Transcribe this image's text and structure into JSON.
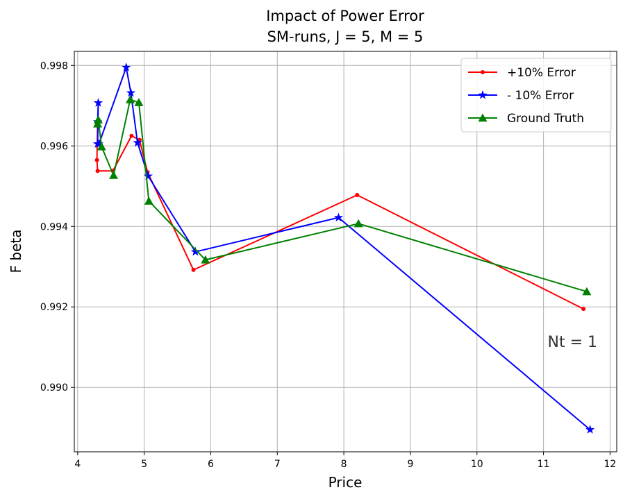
{
  "chart_data": {
    "type": "line",
    "title": "Impact of Power Error",
    "subtitle": "SM-runs, J = 5, M = 5",
    "xlabel": "Price",
    "ylabel": "F beta",
    "xlim": [
      3.95,
      12.1
    ],
    "ylim": [
      0.9884,
      0.99835
    ],
    "xticks": [
      4,
      5,
      6,
      7,
      8,
      9,
      10,
      11,
      12
    ],
    "yticks": [
      0.99,
      0.992,
      0.994,
      0.996,
      0.998
    ],
    "ytick_labels": [
      "0.990",
      "0.992",
      "0.994",
      "0.996",
      "0.998"
    ],
    "grid": true,
    "legend_position": "top-right",
    "annotation": "Nt = 1",
    "series": [
      {
        "name": "+10% Error",
        "color": "#ff0000",
        "marker": "dot",
        "x": [
          4.3,
          4.29,
          4.3,
          4.53,
          4.81,
          4.93,
          5.05,
          5.74,
          8.2,
          11.6
        ],
        "y": [
          0.9966,
          0.99565,
          0.99538,
          0.99538,
          0.99625,
          0.99615,
          0.99535,
          0.99292,
          0.99478,
          0.99195
        ]
      },
      {
        "name": "- 10% Error",
        "color": "#0000ff",
        "marker": "star",
        "x": [
          4.3,
          4.31,
          4.3,
          4.32,
          4.73,
          4.8,
          4.9,
          5.06,
          5.77,
          7.92,
          11.7
        ],
        "y": [
          0.9966,
          0.99707,
          0.99605,
          0.99605,
          0.99795,
          0.99732,
          0.99608,
          0.99525,
          0.99337,
          0.99422,
          0.98895
        ]
      },
      {
        "name": "Ground Truth",
        "color": "#008000",
        "marker": "triangle",
        "x": [
          4.3,
          4.31,
          4.36,
          4.54,
          4.79,
          4.92,
          5.07,
          5.92,
          8.22,
          11.65
        ],
        "y": [
          0.99655,
          0.99665,
          0.99598,
          0.99527,
          0.99715,
          0.99708,
          0.99463,
          0.99317,
          0.99407,
          0.99238
        ]
      }
    ]
  }
}
